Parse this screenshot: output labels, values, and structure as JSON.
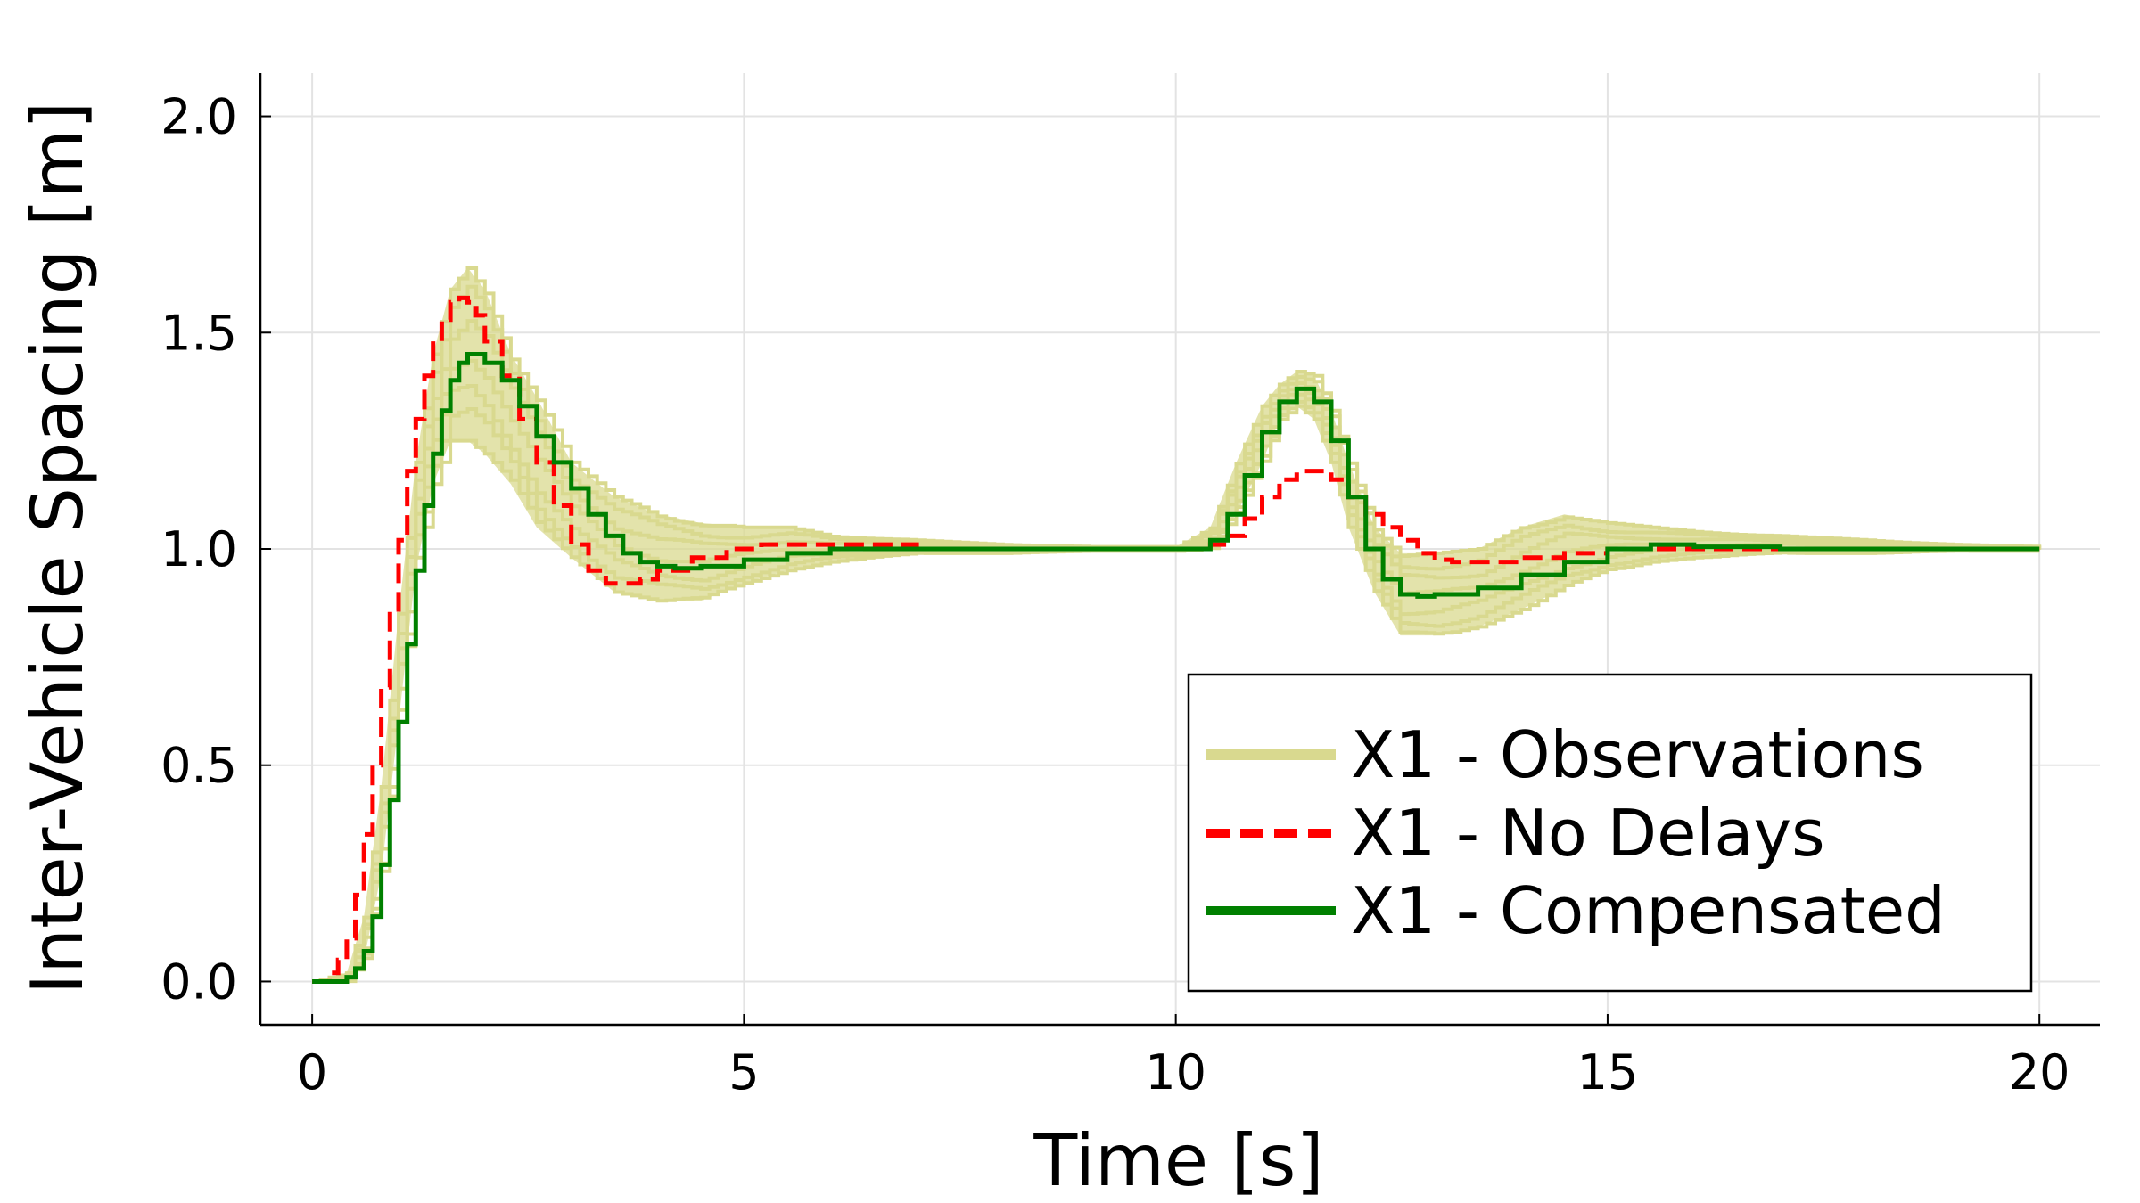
{
  "chart_data": {
    "type": "line",
    "title": "",
    "xlabel": "Time [s]",
    "ylabel": "Inter-Vehicle Spacing [m]",
    "xlim": [
      -0.6,
      20.7
    ],
    "ylim": [
      -0.1,
      2.1
    ],
    "xticks": [
      0,
      5,
      10,
      15,
      20
    ],
    "xtick_labels": [
      "0",
      "5",
      "10",
      "15",
      "20"
    ],
    "yticks": [
      0.0,
      0.5,
      1.0,
      1.5,
      2.0
    ],
    "ytick_labels": [
      "0.0",
      "0.5",
      "1.0",
      "1.5",
      "2.0"
    ],
    "grid": true,
    "legend_position": "bottom-right",
    "series": [
      {
        "name": "X1 - Observations",
        "color": "#d9d98f",
        "style": "solid",
        "band": true,
        "x": [
          0,
          0.4,
          0.6,
          0.8,
          1.0,
          1.2,
          1.4,
          1.6,
          1.8,
          2.0,
          2.3,
          2.6,
          3.0,
          3.5,
          4.0,
          4.5,
          5.0,
          5.5,
          6.0,
          7.0,
          8.0,
          9.0,
          10.0,
          10.4,
          10.7,
          11.0,
          11.2,
          11.4,
          11.6,
          11.8,
          12.0,
          12.3,
          12.6,
          13.0,
          13.5,
          14.0,
          14.5,
          15.0,
          15.5,
          16.0,
          17.0,
          18.0,
          19.0,
          20.0
        ],
        "lower": [
          0,
          0.0,
          0.05,
          0.25,
          0.6,
          0.95,
          1.15,
          1.25,
          1.25,
          1.22,
          1.15,
          1.05,
          0.98,
          0.9,
          0.88,
          0.88,
          0.92,
          0.95,
          0.97,
          0.99,
          0.99,
          0.995,
          0.995,
          1.0,
          1.08,
          1.2,
          1.3,
          1.33,
          1.3,
          1.2,
          1.05,
          0.9,
          0.8,
          0.8,
          0.82,
          0.86,
          0.91,
          0.95,
          0.97,
          0.98,
          0.99,
          0.99,
          0.995,
          0.995
        ],
        "upper": [
          0,
          0.02,
          0.15,
          0.45,
          0.85,
          1.2,
          1.45,
          1.6,
          1.65,
          1.6,
          1.45,
          1.35,
          1.2,
          1.12,
          1.08,
          1.06,
          1.05,
          1.05,
          1.03,
          1.02,
          1.01,
          1.005,
          1.005,
          1.05,
          1.2,
          1.33,
          1.38,
          1.41,
          1.4,
          1.32,
          1.2,
          1.05,
          0.99,
          0.99,
          1.0,
          1.05,
          1.08,
          1.06,
          1.05,
          1.04,
          1.03,
          1.02,
          1.01,
          1.005
        ]
      },
      {
        "name": "X1 - No Delays",
        "color": "#ff0000",
        "style": "dashed",
        "x": [
          0,
          0.1,
          0.2,
          0.3,
          0.4,
          0.5,
          0.6,
          0.7,
          0.8,
          0.9,
          1.0,
          1.1,
          1.2,
          1.3,
          1.4,
          1.5,
          1.6,
          1.7,
          1.8,
          1.9,
          2.0,
          2.2,
          2.4,
          2.6,
          2.8,
          3.0,
          3.2,
          3.4,
          3.6,
          3.8,
          4.0,
          4.4,
          4.8,
          5.2,
          5.6,
          6.0,
          7.0,
          8.0,
          9.0,
          10.0,
          10.2,
          10.4,
          10.6,
          10.8,
          11.0,
          11.2,
          11.4,
          11.6,
          11.8,
          12.0,
          12.2,
          12.4,
          12.6,
          12.8,
          13.0,
          13.2,
          13.6,
          14.0,
          14.5,
          15.0,
          15.5,
          16.0,
          17.0,
          18.0,
          19.0,
          20.0
        ],
        "y": [
          0,
          0.0,
          0.02,
          0.05,
          0.1,
          0.2,
          0.34,
          0.5,
          0.68,
          0.86,
          1.02,
          1.18,
          1.3,
          1.4,
          1.48,
          1.53,
          1.57,
          1.58,
          1.57,
          1.54,
          1.48,
          1.4,
          1.3,
          1.2,
          1.1,
          1.01,
          0.95,
          0.92,
          0.92,
          0.93,
          0.95,
          0.98,
          1.0,
          1.01,
          1.01,
          1.01,
          1.0,
          1.0,
          1.0,
          1.0,
          1.0,
          1.01,
          1.03,
          1.07,
          1.12,
          1.16,
          1.18,
          1.18,
          1.16,
          1.12,
          1.08,
          1.05,
          1.02,
          0.99,
          0.975,
          0.97,
          0.97,
          0.98,
          0.99,
          1.0,
          1.0,
          1.0,
          1.0,
          1.0,
          1.0,
          1.0
        ]
      },
      {
        "name": "X1 - Compensated",
        "color": "#008000",
        "style": "solid",
        "x": [
          0,
          0.1,
          0.2,
          0.3,
          0.4,
          0.5,
          0.6,
          0.7,
          0.8,
          0.9,
          1.0,
          1.1,
          1.2,
          1.3,
          1.4,
          1.5,
          1.6,
          1.7,
          1.8,
          1.9,
          2.0,
          2.2,
          2.4,
          2.6,
          2.8,
          3.0,
          3.2,
          3.4,
          3.6,
          3.8,
          4.0,
          4.2,
          4.5,
          5.0,
          5.5,
          6.0,
          6.5,
          7.0,
          8.0,
          9.0,
          10.0,
          10.2,
          10.4,
          10.6,
          10.8,
          11.0,
          11.2,
          11.4,
          11.6,
          11.8,
          12.0,
          12.2,
          12.4,
          12.6,
          12.8,
          13.0,
          13.5,
          14.0,
          14.5,
          15.0,
          15.5,
          16.0,
          17.0,
          18.0,
          19.0,
          20.0
        ],
        "y": [
          0,
          0.0,
          0.0,
          0.0,
          0.01,
          0.03,
          0.07,
          0.15,
          0.27,
          0.42,
          0.6,
          0.78,
          0.95,
          1.1,
          1.22,
          1.32,
          1.39,
          1.43,
          1.45,
          1.45,
          1.43,
          1.39,
          1.33,
          1.26,
          1.2,
          1.14,
          1.08,
          1.03,
          0.99,
          0.97,
          0.96,
          0.955,
          0.96,
          0.975,
          0.99,
          1.0,
          1.0,
          1.0,
          1.0,
          1.0,
          1.0,
          1.0,
          1.02,
          1.08,
          1.17,
          1.27,
          1.34,
          1.37,
          1.34,
          1.25,
          1.12,
          1.0,
          0.93,
          0.895,
          0.89,
          0.895,
          0.91,
          0.94,
          0.97,
          1.0,
          1.01,
          1.005,
          1.0,
          1.0,
          1.0,
          1.0
        ]
      }
    ]
  }
}
